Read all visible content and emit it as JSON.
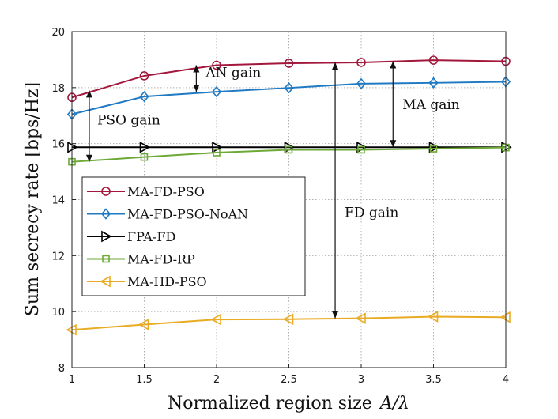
{
  "chart_data": {
    "type": "line",
    "xlabel_main": "Normalized region size",
    "xlabel_math": "A/λ",
    "ylabel": "Sum secrecy rate [bps/Hz]",
    "xlim": [
      1,
      4
    ],
    "ylim": [
      8,
      20
    ],
    "xticks": [
      "1",
      "1.5",
      "2",
      "2.5",
      "3",
      "3.5",
      "4"
    ],
    "yticks": [
      "8",
      "10",
      "12",
      "14",
      "16",
      "18",
      "20"
    ],
    "grid": true,
    "legend_position": "center-left",
    "x": [
      1,
      1.5,
      2,
      2.5,
      3,
      3.5,
      4
    ],
    "series": [
      {
        "name": "MA-FD-PSO",
        "color": "#a3173c",
        "marker": "circle",
        "values": [
          17.65,
          18.42,
          18.8,
          18.87,
          18.9,
          18.98,
          18.94
        ]
      },
      {
        "name": "MA-FD-PSO-NoAN",
        "color": "#1f7ac3",
        "marker": "diamond",
        "values": [
          17.05,
          17.68,
          17.85,
          17.99,
          18.14,
          18.17,
          18.21
        ]
      },
      {
        "name": "FPA-FD",
        "color": "#000000",
        "marker": "triangle-right",
        "values": [
          15.87,
          15.87,
          15.87,
          15.87,
          15.87,
          15.87,
          15.87
        ]
      },
      {
        "name": "MA-FD-RP",
        "color": "#6da936",
        "marker": "square",
        "values": [
          15.35,
          15.52,
          15.68,
          15.78,
          15.78,
          15.82,
          15.86
        ]
      },
      {
        "name": "MA-HD-PSO",
        "color": "#e9ab23",
        "marker": "triangle-left",
        "values": [
          9.35,
          9.54,
          9.72,
          9.73,
          9.76,
          9.82,
          9.8
        ]
      }
    ],
    "annotations": [
      {
        "text": "AN gain",
        "x_arrow": 1.86,
        "y_from": 18.8,
        "y_to": 17.85
      },
      {
        "text": "PSO gain",
        "x_arrow": 1.12,
        "y_from": 17.9,
        "y_to": 15.35
      },
      {
        "text": "MA gain",
        "x_arrow": 3.22,
        "y_from": 18.94,
        "y_to": 15.87
      },
      {
        "text": "FD gain",
        "x_arrow": 2.82,
        "y_from": 18.9,
        "y_to": 9.76
      }
    ]
  }
}
